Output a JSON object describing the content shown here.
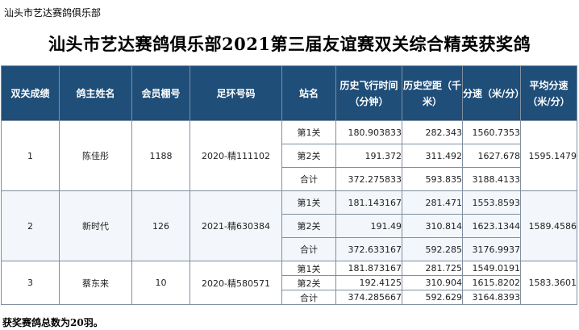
{
  "sheet_label": "汕头市艺达赛鸽俱乐部",
  "title": "汕头市艺达赛鸽俱乐部2021第三届友谊赛双关综合精英获奖鸽",
  "headers": {
    "rank": "双关成绩",
    "owner": "鸽主姓名",
    "member": "会员棚号",
    "ring": "足环号码",
    "stage": "站名",
    "time": "历史飞行时间（分钟）",
    "distance": "历史空距（千米）",
    "speed": "分速（米/分）",
    "avg_speed": "平均分速（米/分）"
  },
  "entries": [
    {
      "rank": "1",
      "owner": "陈佳彤",
      "member": "1188",
      "ring": "2020-精111102",
      "avg_speed": "1595.1479",
      "stages": [
        {
          "stage": "第1关",
          "time": "180.903833",
          "distance": "282.343",
          "speed": "1560.7353"
        },
        {
          "stage": "第2关",
          "time": "191.372",
          "distance": "311.492",
          "speed": "1627.678"
        },
        {
          "stage": "合计",
          "time": "372.275833",
          "distance": "593.835",
          "speed": "3188.4133"
        }
      ]
    },
    {
      "rank": "2",
      "owner": "新时代",
      "member": "126",
      "ring": "2021-精630384",
      "avg_speed": "1589.4586",
      "stages": [
        {
          "stage": "第1关",
          "time": "181.143167",
          "distance": "281.471",
          "speed": "1553.8593"
        },
        {
          "stage": "第2关",
          "time": "191.49",
          "distance": "310.814",
          "speed": "1623.1344"
        },
        {
          "stage": "合计",
          "time": "372.633167",
          "distance": "592.285",
          "speed": "3176.9937"
        }
      ]
    },
    {
      "rank": "3",
      "owner": "蔡东来",
      "member": "10",
      "ring": "2020-精580571",
      "avg_speed": "1583.3601",
      "stages": [
        {
          "stage": "第1关",
          "time": "181.873167",
          "distance": "281.725",
          "speed": "1549.0191"
        },
        {
          "stage": "第2关",
          "time": "192.4125",
          "distance": "310.904",
          "speed": "1615.8202"
        },
        {
          "stage": "合计",
          "time": "374.285667",
          "distance": "592.629",
          "speed": "3164.8393"
        }
      ]
    }
  ],
  "footer": "获奖赛鸽总数为20羽。"
}
